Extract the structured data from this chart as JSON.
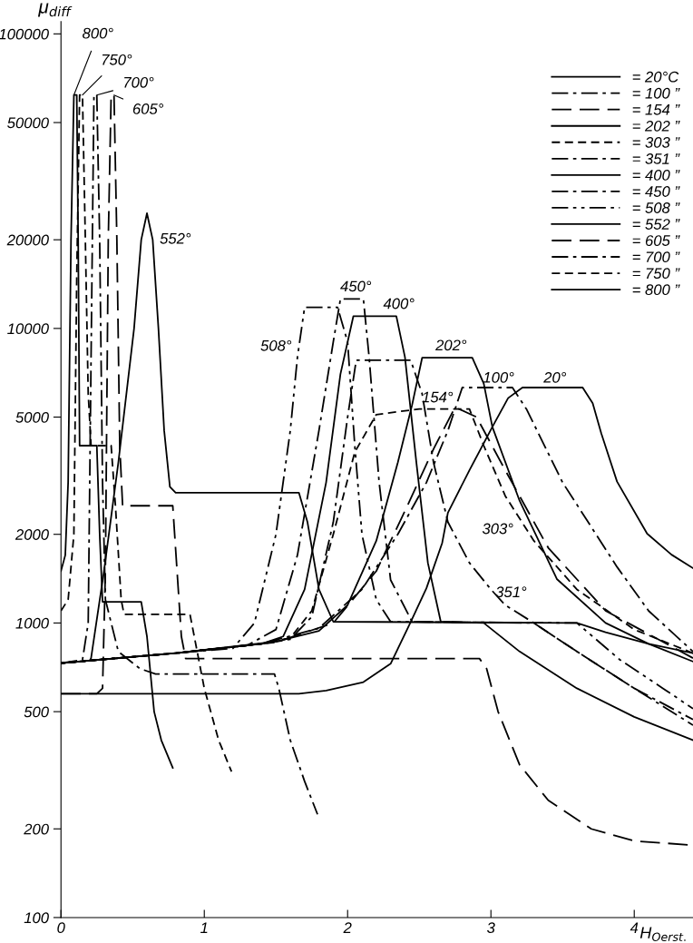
{
  "chart_data": {
    "type": "line",
    "xlabel": "H$_{Oerst.}$",
    "ylabel": "μ$_{diff}$",
    "log": "y",
    "xlim": [
      0,
      4.41
    ],
    "ylim": [
      100,
      110000
    ],
    "xticks": [
      0,
      1,
      2,
      3,
      4
    ],
    "yticks": [
      100,
      200,
      500,
      1000,
      2000,
      5000,
      10000,
      20000,
      50000,
      100000
    ],
    "grid": false,
    "legend": "top right",
    "marker": "none",
    "series": [
      {
        "name": "= 20°C",
        "color": "#000000",
        "line_style": "solid",
        "x": [
          0,
          1.0,
          1.66,
          1.85,
          2.11,
          2.3,
          2.44,
          2.55,
          2.66,
          2.7,
          2.85,
          3.01,
          3.12,
          3.22,
          3.64,
          3.71,
          3.77,
          3.88,
          4.09,
          4.26,
          4.41
        ],
        "values": [
          575,
          575,
          575,
          590,
          630,
          727,
          1007,
          1312,
          1870,
          2370,
          3300,
          4630,
          5800,
          6300,
          6300,
          5570,
          4400,
          3020,
          2010,
          1706,
          1535
        ]
      },
      {
        "name": "= 100 ”",
        "color": "#000000",
        "line_style": "dashdot",
        "x": [
          0,
          0.8,
          1.4,
          1.8,
          2.1,
          2.35,
          2.55,
          2.7,
          2.8,
          3.15,
          3.25,
          3.5,
          3.88,
          4.1,
          4.41
        ],
        "values": [
          731,
          790,
          850,
          960,
          1300,
          2000,
          3000,
          4500,
          6300,
          6300,
          5300,
          3000,
          1550,
          1100,
          800
        ]
      },
      {
        "name": "= 154 ”",
        "color": "#000000",
        "line_style": "longdash",
        "x": [
          0,
          0.8,
          1.5,
          1.9,
          2.2,
          2.4,
          2.6,
          2.75,
          2.9,
          3.1,
          3.4,
          3.8,
          4.41
        ],
        "values": [
          731,
          790,
          860,
          1000,
          1500,
          2400,
          3900,
          5400,
          5000,
          3300,
          1800,
          1100,
          760
        ]
      },
      {
        "name": "= 202 ”",
        "color": "#000000",
        "line_style": "solid",
        "x": [
          0,
          0.8,
          1.5,
          1.8,
          2.0,
          2.2,
          2.35,
          2.45,
          2.52,
          2.87,
          2.95,
          3.01,
          3.2,
          3.46,
          3.8,
          4.1,
          4.41
        ],
        "values": [
          731,
          790,
          865,
          940,
          1150,
          1900,
          3500,
          5500,
          7950,
          7950,
          6500,
          4630,
          2600,
          1410,
          1000,
          850,
          740
        ]
      },
      {
        "name": "= 303 ”",
        "color": "#000000",
        "line_style": "dashed",
        "x": [
          0,
          0.8,
          1.4,
          1.6,
          1.75,
          1.9,
          2.05,
          2.2,
          2.5,
          2.85,
          2.95,
          3.1,
          3.3,
          3.6,
          4.0,
          4.41
        ],
        "values": [
          731,
          790,
          850,
          890,
          1100,
          2000,
          3800,
          5100,
          5330,
          5330,
          4000,
          2700,
          1900,
          1300,
          950,
          790
        ]
      },
      {
        "name": "= 351 ”",
        "color": "#000000",
        "line_style": "dashdot",
        "x": [
          0,
          0.8,
          1.4,
          1.6,
          1.75,
          1.9,
          2.0,
          2.06,
          2.44,
          2.52,
          2.6,
          2.7,
          2.85,
          3.0,
          3.1,
          3.3,
          3.6,
          4.0,
          4.41
        ],
        "values": [
          731,
          790,
          850,
          880,
          1050,
          2200,
          5000,
          7800,
          7800,
          6000,
          3500,
          2200,
          1600,
          1300,
          1150,
          1000,
          800,
          600,
          450
        ]
      },
      {
        "name": "= 400 ”",
        "color": "#000000",
        "line_style": "solid",
        "x": [
          0,
          0.8,
          1.4,
          1.55,
          1.7,
          1.85,
          1.95,
          2.04,
          2.34,
          2.4,
          2.48,
          2.56,
          2.65,
          2.95,
          3.2,
          3.6,
          4.0,
          4.41
        ],
        "values": [
          731,
          790,
          850,
          900,
          1300,
          3000,
          7000,
          11000,
          11000,
          8000,
          3500,
          1600,
          1010,
          1000,
          800,
          600,
          480,
          400
        ]
      },
      {
        "name": "= 450 ”",
        "color": "#000000",
        "line_style": "dashdot",
        "x": [
          0,
          0.8,
          1.3,
          1.5,
          1.65,
          1.8,
          1.9,
          1.95,
          2.11,
          2.15,
          2.22,
          2.3,
          2.45,
          3.3,
          3.6,
          4.0,
          4.41
        ],
        "values": [
          731,
          790,
          840,
          950,
          1700,
          4500,
          9000,
          12600,
          12600,
          8000,
          3000,
          1400,
          1010,
          1000,
          800,
          600,
          470
        ]
      },
      {
        "name": "= 508 ”",
        "color": "#000000",
        "line_style": "dashdotdot",
        "x": [
          0,
          0.8,
          1.2,
          1.35,
          1.5,
          1.6,
          1.65,
          1.7,
          1.93,
          2.0,
          2.05,
          2.1,
          2.2,
          2.3,
          3.6,
          3.9,
          4.2,
          4.41
        ],
        "values": [
          731,
          790,
          820,
          1000,
          2000,
          4500,
          8000,
          11800,
          11800,
          9000,
          4000,
          2000,
          1200,
          1010,
          1000,
          750,
          600,
          512
        ]
      },
      {
        "name": "= 552 ”",
        "color": "#000000",
        "line_style": "solid",
        "x": [
          0,
          0.2,
          0.21,
          0.3,
          0.4,
          0.51,
          0.56,
          0.6,
          0.64,
          0.68,
          0.72,
          0.76,
          0.8,
          1.66,
          1.72,
          1.8,
          1.9,
          3.6,
          3.8,
          4.1,
          4.41
        ],
        "values": [
          731,
          745,
          760,
          1500,
          3500,
          10000,
          20000,
          24600,
          20000,
          10000,
          4500,
          2900,
          2770,
          2770,
          2200,
          1300,
          1010,
          1000,
          930,
          850,
          790
        ]
      },
      {
        "name": "= 605 ”",
        "color": "#000000",
        "line_style": "longdash",
        "x": [
          0,
          0.25,
          0.29,
          0.31,
          0.33,
          0.35,
          0.37,
          0.39,
          0.41,
          0.43,
          0.78,
          0.81,
          0.84,
          0.87,
          2.92,
          2.97,
          3.05,
          3.2,
          3.4,
          3.7,
          4.0,
          4.41
        ],
        "values": [
          575,
          575,
          600,
          1500,
          20000,
          62000,
          62000,
          20000,
          4000,
          2500,
          2500,
          1500,
          900,
          757,
          757,
          700,
          500,
          330,
          250,
          200,
          182,
          176
        ]
      },
      {
        "name": "= 700 ”",
        "color": "#000000",
        "line_style": "dashdot",
        "x": [
          0,
          0.15,
          0.19,
          0.21,
          0.23,
          0.25,
          0.27,
          0.29,
          0.31,
          0.4,
          0.55,
          0.66,
          1.49,
          1.52,
          1.6,
          1.7,
          1.79
        ],
        "values": [
          731,
          750,
          1000,
          8000,
          62000,
          62000,
          20000,
          3000,
          1200,
          800,
          700,
          671,
          671,
          600,
          400,
          290,
          224
        ]
      },
      {
        "name": "= 750 ”",
        "color": "#000000",
        "line_style": "dashed",
        "x": [
          0,
          0.05,
          0.09,
          0.11,
          0.13,
          0.15,
          0.17,
          0.19,
          0.21,
          0.26,
          0.35,
          0.38,
          0.42,
          0.44,
          0.9,
          0.93,
          1.0,
          1.1,
          1.19
        ],
        "values": [
          1100,
          1200,
          2000,
          15000,
          62000,
          62000,
          20000,
          6000,
          4000,
          4000,
          4000,
          2500,
          1200,
          1070,
          1070,
          900,
          600,
          400,
          313
        ]
      },
      {
        "name": "= 800 ”",
        "color": "#000000",
        "line_style": "solid",
        "x": [
          0,
          0.03,
          0.05,
          0.07,
          0.09,
          0.11,
          0.12,
          0.13,
          0.25,
          0.27,
          0.29,
          0.56,
          0.6,
          0.65,
          0.7,
          0.78
        ],
        "values": [
          1500,
          1700,
          3000,
          20000,
          62000,
          62000,
          20000,
          4000,
          4000,
          2000,
          1180,
          1180,
          900,
          500,
          400,
          322
        ]
      }
    ],
    "annotations": [
      {
        "text": "800°",
        "x": 0.09,
        "y": 62000
      },
      {
        "text": "750°",
        "x": 0.15,
        "y": 62000
      },
      {
        "text": "700°",
        "x": 0.25,
        "y": 62000
      },
      {
        "text": "605°",
        "x": 0.37,
        "y": 62000
      },
      {
        "text": "552°",
        "x": 0.64,
        "y": 20000
      },
      {
        "text": "508°",
        "x": 1.65,
        "y": 8000
      },
      {
        "text": "450°",
        "x": 2.11,
        "y": 12600
      },
      {
        "text": "400°",
        "x": 2.34,
        "y": 11000
      },
      {
        "text": "202°",
        "x": 2.52,
        "y": 7950
      },
      {
        "text": "154°",
        "x": 2.75,
        "y": 5400
      },
      {
        "text": "100°",
        "x": 3.15,
        "y": 6300
      },
      {
        "text": "20°",
        "x": 3.64,
        "y": 6300
      },
      {
        "text": "303°",
        "x": 3.1,
        "y": 2700
      },
      {
        "text": "351°",
        "x": 3.0,
        "y": 1300
      }
    ]
  }
}
